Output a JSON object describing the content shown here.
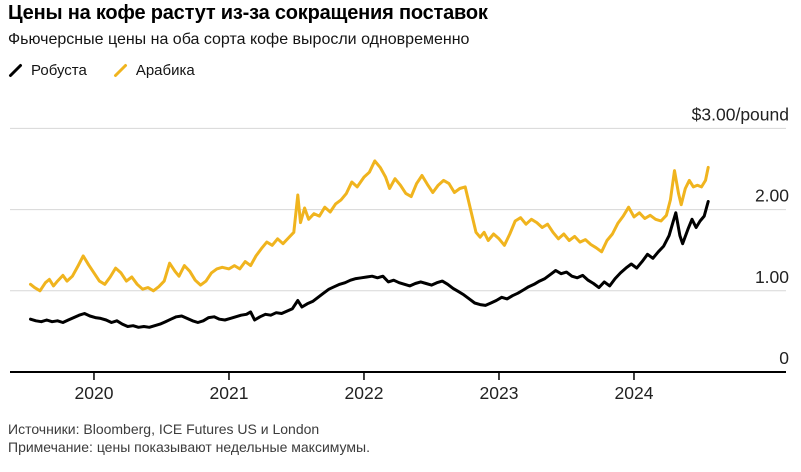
{
  "header": {
    "title": "Цены на кофе растут из-за сокращения поставок",
    "subtitle": "Фьючерсные цены на оба сорта кофе выросли одновременно"
  },
  "legend": [
    {
      "label": "Робуста",
      "color": "#000000"
    },
    {
      "label": "Арабика",
      "color": "#f0b41e"
    }
  ],
  "footer": {
    "sources": "Источники: Bloomberg, ICE Futures US и London",
    "note": "Примечание: цены показывают недельные максимумы."
  },
  "chart_data": {
    "type": "line",
    "title": "Цены на кофе растут из-за сокращения поставок",
    "x_unit": "decimal_year",
    "xlim": [
      2019.378,
      2025.126
    ],
    "ylim": [
      0,
      3
    ],
    "grid": "horizontal",
    "legend_position": "top-left",
    "y_ticks": [
      {
        "value": 3,
        "label": "$3.00/pound"
      },
      {
        "value": 2,
        "label": "2.00"
      },
      {
        "value": 1,
        "label": "1.00"
      },
      {
        "value": 0,
        "label": "0"
      }
    ],
    "x_ticks": [
      {
        "value": 2020,
        "label": "2020"
      },
      {
        "value": 2021,
        "label": "2021"
      },
      {
        "value": 2022,
        "label": "2022"
      },
      {
        "value": 2023,
        "label": "2023"
      },
      {
        "value": 2024,
        "label": "2024"
      }
    ],
    "series": [
      {
        "id": "arabica",
        "name": "Арабика",
        "color": "#f0b41e",
        "points": [
          [
            2019.53,
            1.08
          ],
          [
            2019.56,
            1.04
          ],
          [
            2019.6,
            1.0
          ],
          [
            2019.64,
            1.1
          ],
          [
            2019.67,
            1.14
          ],
          [
            2019.7,
            1.06
          ],
          [
            2019.73,
            1.12
          ],
          [
            2019.77,
            1.19
          ],
          [
            2019.8,
            1.12
          ],
          [
            2019.84,
            1.18
          ],
          [
            2019.88,
            1.3
          ],
          [
            2019.92,
            1.43
          ],
          [
            2019.96,
            1.32
          ],
          [
            2020.0,
            1.22
          ],
          [
            2020.04,
            1.12
          ],
          [
            2020.08,
            1.08
          ],
          [
            2020.12,
            1.17
          ],
          [
            2020.16,
            1.28
          ],
          [
            2020.2,
            1.22
          ],
          [
            2020.24,
            1.12
          ],
          [
            2020.28,
            1.17
          ],
          [
            2020.32,
            1.08
          ],
          [
            2020.36,
            1.02
          ],
          [
            2020.4,
            1.04
          ],
          [
            2020.44,
            1.0
          ],
          [
            2020.48,
            1.05
          ],
          [
            2020.52,
            1.12
          ],
          [
            2020.56,
            1.34
          ],
          [
            2020.6,
            1.24
          ],
          [
            2020.63,
            1.18
          ],
          [
            2020.67,
            1.31
          ],
          [
            2020.71,
            1.24
          ],
          [
            2020.75,
            1.13
          ],
          [
            2020.79,
            1.07
          ],
          [
            2020.83,
            1.12
          ],
          [
            2020.87,
            1.22
          ],
          [
            2020.91,
            1.27
          ],
          [
            2020.95,
            1.29
          ],
          [
            2021.0,
            1.27
          ],
          [
            2021.04,
            1.31
          ],
          [
            2021.08,
            1.27
          ],
          [
            2021.12,
            1.36
          ],
          [
            2021.16,
            1.31
          ],
          [
            2021.2,
            1.43
          ],
          [
            2021.24,
            1.52
          ],
          [
            2021.28,
            1.6
          ],
          [
            2021.32,
            1.56
          ],
          [
            2021.36,
            1.64
          ],
          [
            2021.4,
            1.58
          ],
          [
            2021.44,
            1.65
          ],
          [
            2021.48,
            1.72
          ],
          [
            2021.51,
            2.18
          ],
          [
            2021.53,
            1.84
          ],
          [
            2021.56,
            2.02
          ],
          [
            2021.59,
            1.88
          ],
          [
            2021.63,
            1.95
          ],
          [
            2021.67,
            1.92
          ],
          [
            2021.71,
            2.03
          ],
          [
            2021.75,
            1.97
          ],
          [
            2021.79,
            2.07
          ],
          [
            2021.83,
            2.12
          ],
          [
            2021.87,
            2.2
          ],
          [
            2021.91,
            2.34
          ],
          [
            2021.95,
            2.28
          ],
          [
            2022.0,
            2.4
          ],
          [
            2022.04,
            2.46
          ],
          [
            2022.08,
            2.6
          ],
          [
            2022.12,
            2.52
          ],
          [
            2022.16,
            2.4
          ],
          [
            2022.19,
            2.26
          ],
          [
            2022.23,
            2.38
          ],
          [
            2022.27,
            2.3
          ],
          [
            2022.31,
            2.2
          ],
          [
            2022.35,
            2.16
          ],
          [
            2022.39,
            2.32
          ],
          [
            2022.43,
            2.42
          ],
          [
            2022.47,
            2.31
          ],
          [
            2022.51,
            2.21
          ],
          [
            2022.55,
            2.3
          ],
          [
            2022.59,
            2.36
          ],
          [
            2022.63,
            2.32
          ],
          [
            2022.67,
            2.21
          ],
          [
            2022.71,
            2.26
          ],
          [
            2022.75,
            2.28
          ],
          [
            2022.79,
            2.0
          ],
          [
            2022.83,
            1.72
          ],
          [
            2022.86,
            1.66
          ],
          [
            2022.89,
            1.72
          ],
          [
            2022.92,
            1.62
          ],
          [
            2022.96,
            1.7
          ],
          [
            2023.0,
            1.64
          ],
          [
            2023.04,
            1.56
          ],
          [
            2023.08,
            1.7
          ],
          [
            2023.12,
            1.86
          ],
          [
            2023.16,
            1.9
          ],
          [
            2023.2,
            1.82
          ],
          [
            2023.24,
            1.88
          ],
          [
            2023.28,
            1.84
          ],
          [
            2023.32,
            1.78
          ],
          [
            2023.36,
            1.82
          ],
          [
            2023.4,
            1.72
          ],
          [
            2023.44,
            1.64
          ],
          [
            2023.48,
            1.7
          ],
          [
            2023.52,
            1.62
          ],
          [
            2023.56,
            1.67
          ],
          [
            2023.6,
            1.6
          ],
          [
            2023.64,
            1.63
          ],
          [
            2023.68,
            1.57
          ],
          [
            2023.72,
            1.53
          ],
          [
            2023.76,
            1.48
          ],
          [
            2023.8,
            1.62
          ],
          [
            2023.84,
            1.7
          ],
          [
            2023.88,
            1.83
          ],
          [
            2023.92,
            1.92
          ],
          [
            2023.96,
            2.03
          ],
          [
            2024.0,
            1.91
          ],
          [
            2024.04,
            1.96
          ],
          [
            2024.08,
            1.89
          ],
          [
            2024.12,
            1.93
          ],
          [
            2024.16,
            1.88
          ],
          [
            2024.2,
            1.86
          ],
          [
            2024.24,
            1.93
          ],
          [
            2024.27,
            2.12
          ],
          [
            2024.3,
            2.48
          ],
          [
            2024.33,
            2.2
          ],
          [
            2024.35,
            2.06
          ],
          [
            2024.38,
            2.26
          ],
          [
            2024.41,
            2.36
          ],
          [
            2024.44,
            2.28
          ],
          [
            2024.47,
            2.3
          ],
          [
            2024.5,
            2.28
          ],
          [
            2024.53,
            2.36
          ],
          [
            2024.55,
            2.52
          ]
        ]
      },
      {
        "id": "robusta",
        "name": "Робуста",
        "color": "#000000",
        "points": [
          [
            2019.53,
            0.65
          ],
          [
            2019.57,
            0.63
          ],
          [
            2019.61,
            0.62
          ],
          [
            2019.65,
            0.64
          ],
          [
            2019.69,
            0.62
          ],
          [
            2019.73,
            0.63
          ],
          [
            2019.77,
            0.61
          ],
          [
            2019.81,
            0.64
          ],
          [
            2019.85,
            0.67
          ],
          [
            2019.89,
            0.7
          ],
          [
            2019.93,
            0.72
          ],
          [
            2019.97,
            0.69
          ],
          [
            2020.01,
            0.67
          ],
          [
            2020.05,
            0.66
          ],
          [
            2020.09,
            0.64
          ],
          [
            2020.13,
            0.61
          ],
          [
            2020.17,
            0.63
          ],
          [
            2020.21,
            0.59
          ],
          [
            2020.25,
            0.56
          ],
          [
            2020.29,
            0.57
          ],
          [
            2020.33,
            0.55
          ],
          [
            2020.37,
            0.56
          ],
          [
            2020.41,
            0.55
          ],
          [
            2020.45,
            0.57
          ],
          [
            2020.49,
            0.59
          ],
          [
            2020.53,
            0.62
          ],
          [
            2020.57,
            0.65
          ],
          [
            2020.61,
            0.68
          ],
          [
            2020.65,
            0.69
          ],
          [
            2020.69,
            0.66
          ],
          [
            2020.73,
            0.63
          ],
          [
            2020.77,
            0.61
          ],
          [
            2020.81,
            0.63
          ],
          [
            2020.85,
            0.67
          ],
          [
            2020.89,
            0.68
          ],
          [
            2020.93,
            0.65
          ],
          [
            2020.97,
            0.64
          ],
          [
            2021.01,
            0.66
          ],
          [
            2021.05,
            0.68
          ],
          [
            2021.09,
            0.7
          ],
          [
            2021.13,
            0.71
          ],
          [
            2021.16,
            0.74
          ],
          [
            2021.19,
            0.64
          ],
          [
            2021.23,
            0.68
          ],
          [
            2021.27,
            0.71
          ],
          [
            2021.31,
            0.7
          ],
          [
            2021.35,
            0.73
          ],
          [
            2021.39,
            0.72
          ],
          [
            2021.43,
            0.75
          ],
          [
            2021.47,
            0.78
          ],
          [
            2021.51,
            0.88
          ],
          [
            2021.54,
            0.8
          ],
          [
            2021.58,
            0.84
          ],
          [
            2021.62,
            0.87
          ],
          [
            2021.66,
            0.92
          ],
          [
            2021.7,
            0.97
          ],
          [
            2021.74,
            1.02
          ],
          [
            2021.78,
            1.05
          ],
          [
            2021.82,
            1.08
          ],
          [
            2021.86,
            1.1
          ],
          [
            2021.9,
            1.13
          ],
          [
            2021.94,
            1.15
          ],
          [
            2021.98,
            1.16
          ],
          [
            2022.02,
            1.17
          ],
          [
            2022.06,
            1.18
          ],
          [
            2022.1,
            1.16
          ],
          [
            2022.14,
            1.18
          ],
          [
            2022.18,
            1.11
          ],
          [
            2022.22,
            1.13
          ],
          [
            2022.26,
            1.1
          ],
          [
            2022.3,
            1.08
          ],
          [
            2022.34,
            1.06
          ],
          [
            2022.38,
            1.09
          ],
          [
            2022.42,
            1.11
          ],
          [
            2022.46,
            1.09
          ],
          [
            2022.5,
            1.07
          ],
          [
            2022.54,
            1.1
          ],
          [
            2022.58,
            1.12
          ],
          [
            2022.62,
            1.08
          ],
          [
            2022.66,
            1.03
          ],
          [
            2022.7,
            0.99
          ],
          [
            2022.74,
            0.95
          ],
          [
            2022.78,
            0.9
          ],
          [
            2022.82,
            0.85
          ],
          [
            2022.86,
            0.83
          ],
          [
            2022.9,
            0.82
          ],
          [
            2022.94,
            0.85
          ],
          [
            2022.98,
            0.88
          ],
          [
            2023.02,
            0.92
          ],
          [
            2023.06,
            0.9
          ],
          [
            2023.1,
            0.94
          ],
          [
            2023.14,
            0.97
          ],
          [
            2023.18,
            1.01
          ],
          [
            2023.22,
            1.05
          ],
          [
            2023.26,
            1.08
          ],
          [
            2023.3,
            1.12
          ],
          [
            2023.34,
            1.15
          ],
          [
            2023.38,
            1.2
          ],
          [
            2023.42,
            1.25
          ],
          [
            2023.46,
            1.21
          ],
          [
            2023.5,
            1.23
          ],
          [
            2023.54,
            1.18
          ],
          [
            2023.58,
            1.16
          ],
          [
            2023.62,
            1.19
          ],
          [
            2023.66,
            1.13
          ],
          [
            2023.7,
            1.09
          ],
          [
            2023.74,
            1.04
          ],
          [
            2023.78,
            1.11
          ],
          [
            2023.82,
            1.06
          ],
          [
            2023.86,
            1.15
          ],
          [
            2023.9,
            1.22
          ],
          [
            2023.94,
            1.28
          ],
          [
            2023.98,
            1.33
          ],
          [
            2024.02,
            1.28
          ],
          [
            2024.06,
            1.36
          ],
          [
            2024.1,
            1.45
          ],
          [
            2024.14,
            1.4
          ],
          [
            2024.18,
            1.48
          ],
          [
            2024.22,
            1.55
          ],
          [
            2024.26,
            1.68
          ],
          [
            2024.29,
            1.85
          ],
          [
            2024.31,
            1.96
          ],
          [
            2024.34,
            1.68
          ],
          [
            2024.36,
            1.58
          ],
          [
            2024.4,
            1.76
          ],
          [
            2024.43,
            1.88
          ],
          [
            2024.46,
            1.78
          ],
          [
            2024.49,
            1.86
          ],
          [
            2024.52,
            1.92
          ],
          [
            2024.55,
            2.1
          ]
        ]
      }
    ]
  }
}
